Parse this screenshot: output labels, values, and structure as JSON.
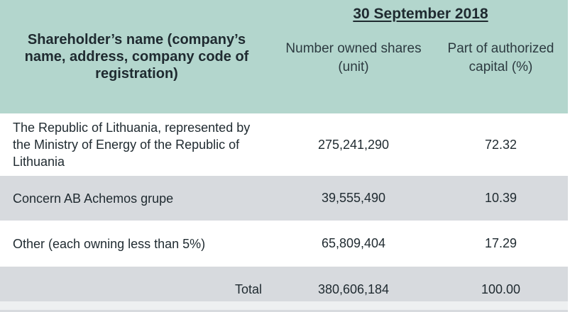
{
  "header": {
    "name_col": "Shareholder’s name (company’s name, address, company code of registration)",
    "date": "30 September 2018",
    "shares_col": "Number owned shares (unit)",
    "capital_col": "Part of authorized capital (%)"
  },
  "rows": [
    {
      "name": "The Republic of Lithuania, represented by the Ministry of Energy of the Republic of Lithuania",
      "shares": "275,241,290",
      "percent": "72.32"
    },
    {
      "name": "Concern AB Achemos grupe",
      "shares": "39,555,490",
      "percent": "10.39"
    },
    {
      "name": "Other (each owning less than 5%)",
      "shares": "65,809,404",
      "percent": "17.29"
    }
  ],
  "total": {
    "label": "Total",
    "shares": "380,606,184",
    "percent": "100.00"
  },
  "colors": {
    "header_bg": "#b3d6cd",
    "row_alt_bg": "#d7dade"
  }
}
